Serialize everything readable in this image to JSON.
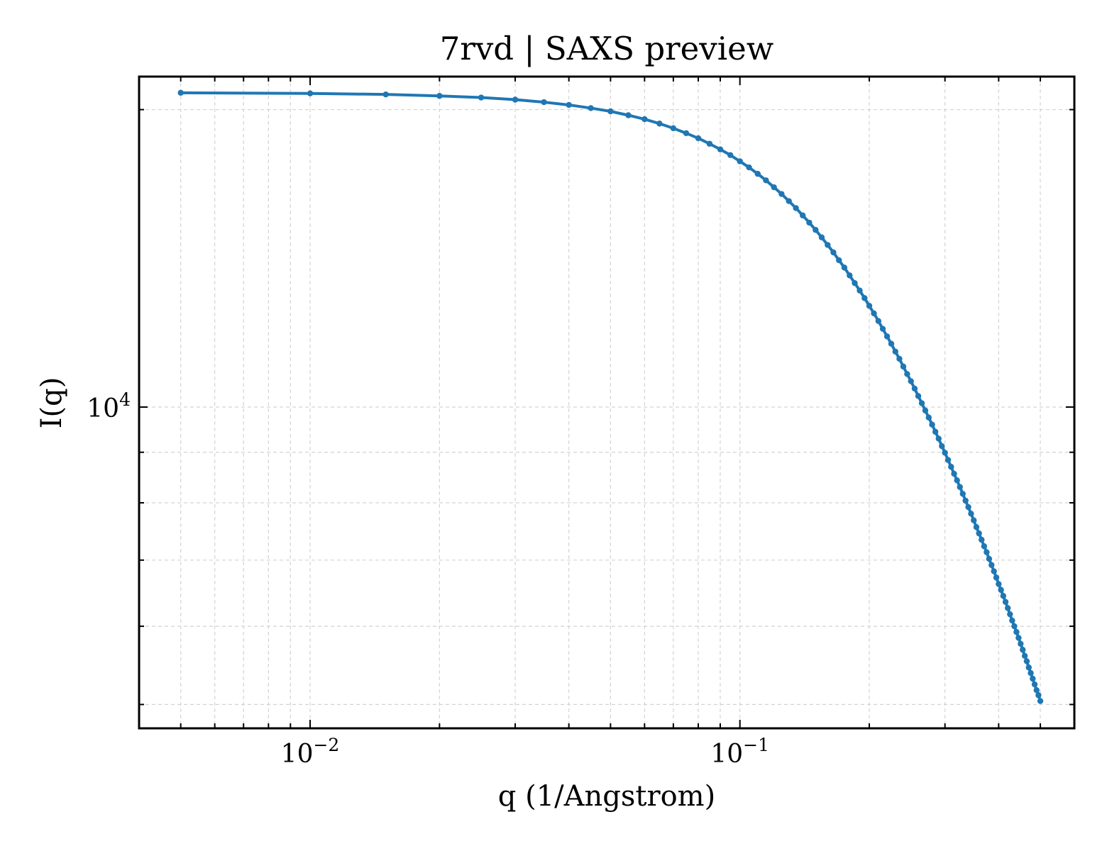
{
  "chart_data": {
    "type": "line",
    "title": "7rvd | SAXS preview",
    "xlabel": "q (1/Angstrom)",
    "ylabel": "I(q)",
    "xscale": "log",
    "yscale": "log",
    "xlim": [
      0.004,
      0.6
    ],
    "ylim": [
      4730,
      21600
    ],
    "grid": true,
    "legend": "none",
    "colors": {
      "series": "#1f77b4",
      "grid": "#d3d3d3",
      "axes": "#000000"
    },
    "x_tick_labels": [
      {
        "value": 0.01,
        "base": "10",
        "exp": "−2"
      },
      {
        "value": 0.1,
        "base": "10",
        "exp": "−1"
      }
    ],
    "y_tick_labels": [
      {
        "value": 10000,
        "base": "10",
        "exp": "4"
      }
    ],
    "series": [
      {
        "x": [
          0.005,
          0.01,
          0.015,
          0.02,
          0.025,
          0.03,
          0.035,
          0.04,
          0.045,
          0.05,
          0.055,
          0.06,
          0.065,
          0.07,
          0.075,
          0.08,
          0.085,
          0.09,
          0.095,
          0.1,
          0.105,
          0.11,
          0.115,
          0.12,
          0.125,
          0.13,
          0.135,
          0.14,
          0.145,
          0.15,
          0.155,
          0.16,
          0.165,
          0.17,
          0.175,
          0.18,
          0.185,
          0.19,
          0.195,
          0.2,
          0.205,
          0.21,
          0.215,
          0.22,
          0.225,
          0.23,
          0.235,
          0.24,
          0.245,
          0.25,
          0.255,
          0.26,
          0.265,
          0.27,
          0.275,
          0.28,
          0.285,
          0.29,
          0.295,
          0.3,
          0.305,
          0.31,
          0.315,
          0.32,
          0.325,
          0.33,
          0.335,
          0.34,
          0.345,
          0.35,
          0.355,
          0.36,
          0.365,
          0.37,
          0.375,
          0.38,
          0.385,
          0.39,
          0.395,
          0.4,
          0.405,
          0.41,
          0.415,
          0.42,
          0.425,
          0.43,
          0.435,
          0.44,
          0.445,
          0.45,
          0.455,
          0.46,
          0.465,
          0.47,
          0.475,
          0.48,
          0.485,
          0.49,
          0.495,
          0.5
        ],
        "y": [
          20800,
          20770,
          20720,
          20650,
          20570,
          20470,
          20350,
          20220,
          20070,
          19920,
          19740,
          19560,
          19360,
          19150,
          18930,
          18710,
          18470,
          18230,
          17990,
          17730,
          17480,
          17220,
          16960,
          16690,
          16430,
          16160,
          15900,
          15630,
          15370,
          15110,
          14850,
          14590,
          14340,
          14080,
          13840,
          13590,
          13350,
          13120,
          12890,
          12660,
          12440,
          12220,
          12000,
          11790,
          11590,
          11380,
          11190,
          10990,
          10800,
          10620,
          10440,
          10260,
          10090,
          9920,
          9760,
          9600,
          9440,
          9290,
          9130,
          8990,
          8840,
          8700,
          8560,
          8430,
          8300,
          8170,
          8040,
          7920,
          7800,
          7680,
          7560,
          7450,
          7340,
          7230,
          7130,
          7020,
          6920,
          6820,
          6720,
          6620,
          6530,
          6440,
          6350,
          6260,
          6170,
          6080,
          6000,
          5920,
          5840,
          5760,
          5680,
          5600,
          5530,
          5450,
          5380,
          5310,
          5240,
          5170,
          5110,
          5040
        ]
      }
    ]
  }
}
